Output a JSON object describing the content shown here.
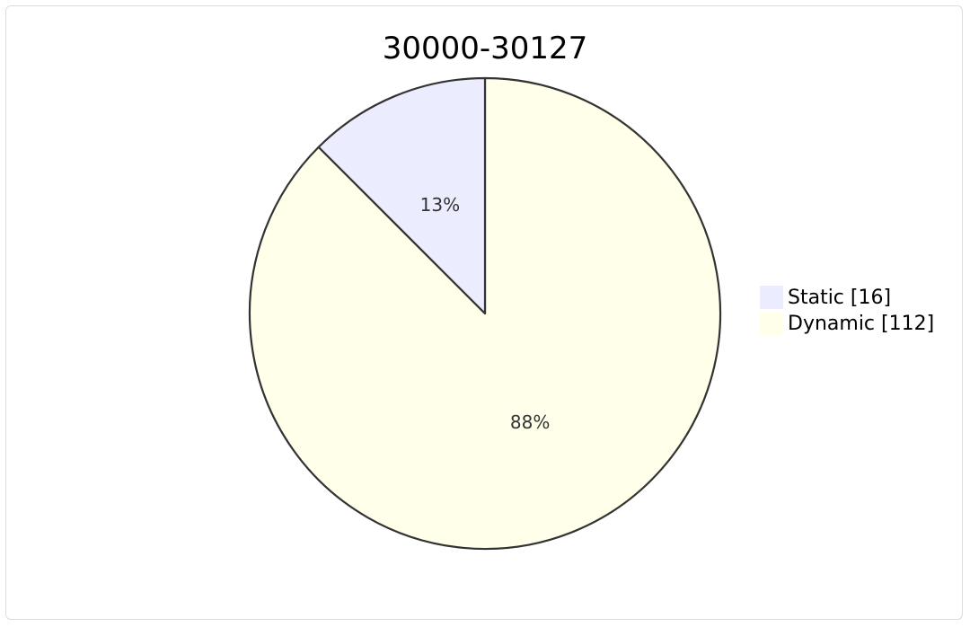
{
  "chart_data": {
    "type": "pie",
    "title": "30000-30127",
    "slices": [
      {
        "name": "Static",
        "legend_label": "Static [16]",
        "value": 16,
        "percent_label": "13%",
        "color": "#ECECFF"
      },
      {
        "name": "Dynamic",
        "legend_label": "Dynamic [112]",
        "value": 112,
        "percent_label": "88%",
        "color": "#FFFFEA"
      }
    ],
    "legend_position": "right",
    "stroke_color": "#333333"
  }
}
